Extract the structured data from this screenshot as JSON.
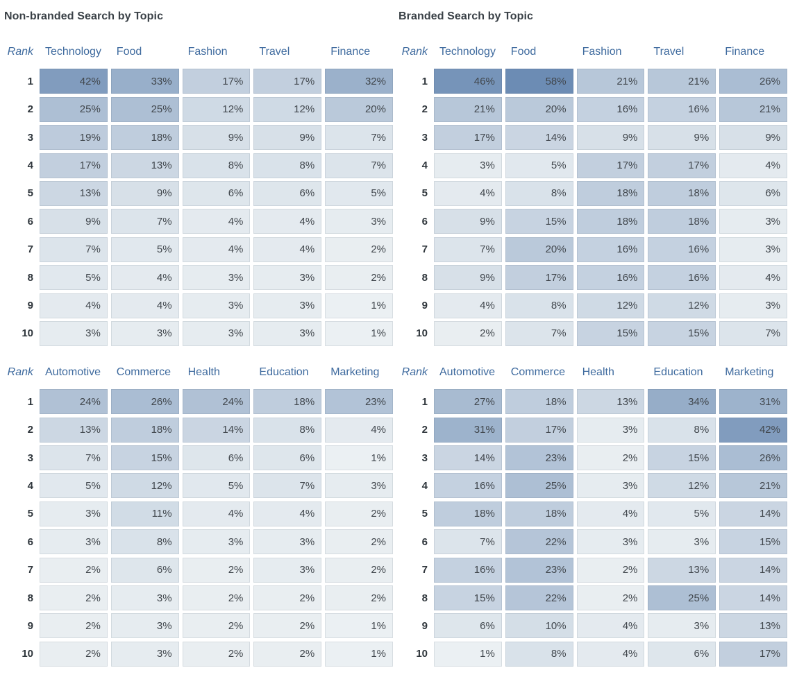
{
  "heat_scale": {
    "min_color": "#eef2f4",
    "max_color": "#6c8cb4",
    "domain": [
      0,
      50
    ]
  },
  "colors": {
    "column_header_blue": "#3e6a9e",
    "title_text": "#3a4147",
    "cell_text": "#41474d",
    "rank_text": "#2e353b",
    "background": "#ffffff"
  },
  "panels": [
    {
      "title": "Non-branded Search by Topic",
      "table_indexes": "0,1"
    },
    {
      "title": "Branded Search by Topic",
      "table_indexes": "2,3"
    }
  ],
  "chart_data": [
    {
      "type": "heatmap",
      "title": "Non-branded Search by Topic",
      "group": "non-branded",
      "rank_label": "Rank",
      "columns": [
        "Technology",
        "Food",
        "Fashion",
        "Travel",
        "Finance"
      ],
      "ranks": [
        1,
        2,
        3,
        4,
        5,
        6,
        7,
        8,
        9,
        10
      ],
      "value_suffix": "%",
      "color_domain": [
        0,
        50
      ],
      "values_pct": [
        [
          42,
          33,
          17,
          17,
          32
        ],
        [
          25,
          25,
          12,
          12,
          20
        ],
        [
          19,
          18,
          9,
          9,
          7
        ],
        [
          17,
          13,
          8,
          8,
          7
        ],
        [
          13,
          9,
          6,
          6,
          5
        ],
        [
          9,
          7,
          4,
          4,
          3
        ],
        [
          7,
          5,
          4,
          4,
          2
        ],
        [
          5,
          4,
          3,
          3,
          2
        ],
        [
          4,
          4,
          3,
          3,
          1
        ],
        [
          3,
          3,
          3,
          3,
          1
        ]
      ]
    },
    {
      "type": "heatmap",
      "title": "Non-branded Search by Topic",
      "group": "non-branded",
      "rank_label": "Rank",
      "columns": [
        "Automotive",
        "Commerce",
        "Health",
        "Education",
        "Marketing"
      ],
      "ranks": [
        1,
        2,
        3,
        4,
        5,
        6,
        7,
        8,
        9,
        10
      ],
      "value_suffix": "%",
      "color_domain": [
        0,
        50
      ],
      "values_pct": [
        [
          24,
          26,
          24,
          18,
          23
        ],
        [
          13,
          18,
          14,
          8,
          4
        ],
        [
          7,
          15,
          6,
          6,
          1
        ],
        [
          5,
          12,
          5,
          7,
          3
        ],
        [
          3,
          11,
          4,
          4,
          2
        ],
        [
          3,
          8,
          3,
          3,
          2
        ],
        [
          2,
          6,
          2,
          3,
          2
        ],
        [
          2,
          3,
          2,
          2,
          2
        ],
        [
          2,
          3,
          2,
          2,
          1
        ],
        [
          2,
          3,
          2,
          2,
          1
        ]
      ]
    },
    {
      "type": "heatmap",
      "title": "Branded Search by Topic",
      "group": "branded",
      "rank_label": "Rank",
      "columns": [
        "Technology",
        "Food",
        "Fashion",
        "Travel",
        "Finance"
      ],
      "ranks": [
        1,
        2,
        3,
        4,
        5,
        6,
        7,
        8,
        9,
        10
      ],
      "value_suffix": "%",
      "color_domain": [
        0,
        50
      ],
      "values_pct": [
        [
          46,
          58,
          21,
          21,
          26
        ],
        [
          21,
          20,
          16,
          16,
          21
        ],
        [
          17,
          14,
          9,
          9,
          9
        ],
        [
          3,
          5,
          17,
          17,
          4
        ],
        [
          4,
          8,
          18,
          18,
          6
        ],
        [
          9,
          15,
          18,
          18,
          3
        ],
        [
          7,
          20,
          16,
          16,
          3
        ],
        [
          9,
          17,
          16,
          16,
          4
        ],
        [
          4,
          8,
          12,
          12,
          3
        ],
        [
          2,
          7,
          15,
          15,
          7
        ]
      ]
    },
    {
      "type": "heatmap",
      "title": "Branded Search by Topic",
      "group": "branded",
      "rank_label": "Rank",
      "columns": [
        "Automotive",
        "Commerce",
        "Health",
        "Education",
        "Marketing"
      ],
      "ranks": [
        1,
        2,
        3,
        4,
        5,
        6,
        7,
        8,
        9,
        10
      ],
      "value_suffix": "%",
      "color_domain": [
        0,
        50
      ],
      "values_pct": [
        [
          27,
          18,
          13,
          34,
          31
        ],
        [
          31,
          17,
          3,
          8,
          42
        ],
        [
          14,
          23,
          2,
          15,
          26
        ],
        [
          16,
          25,
          3,
          12,
          21
        ],
        [
          18,
          18,
          4,
          5,
          14
        ],
        [
          7,
          22,
          3,
          3,
          15
        ],
        [
          16,
          23,
          2,
          13,
          14
        ],
        [
          15,
          22,
          2,
          25,
          14
        ],
        [
          6,
          10,
          4,
          3,
          13
        ],
        [
          1,
          8,
          4,
          6,
          17
        ]
      ]
    }
  ]
}
